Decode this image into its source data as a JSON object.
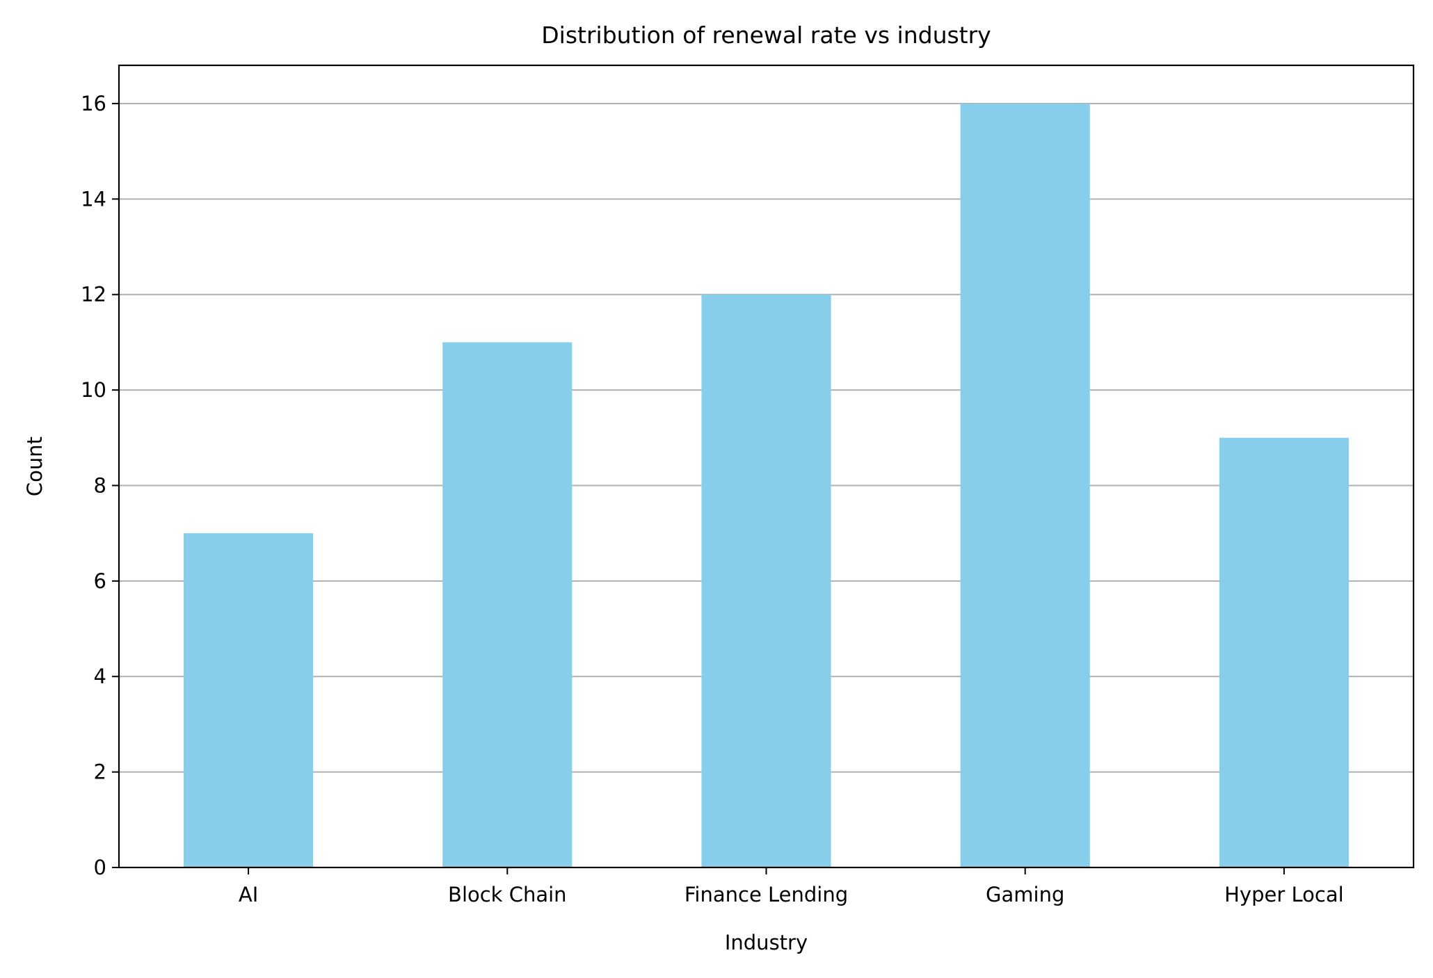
{
  "chart_data": {
    "type": "bar",
    "title": "Distribution of renewal rate vs industry",
    "xlabel": "Industry",
    "ylabel": "Count",
    "categories": [
      "AI",
      "Block Chain",
      "Finance Lending",
      "Gaming",
      "Hyper Local"
    ],
    "values": [
      7,
      11,
      12,
      16,
      9
    ],
    "ylim": [
      0,
      16.8
    ],
    "yticks": [
      0,
      2,
      4,
      6,
      8,
      10,
      12,
      14,
      16
    ],
    "grid": "y",
    "legend": "none",
    "bar_color": "#87CEEB",
    "grid_color": "#b0b0b0"
  }
}
